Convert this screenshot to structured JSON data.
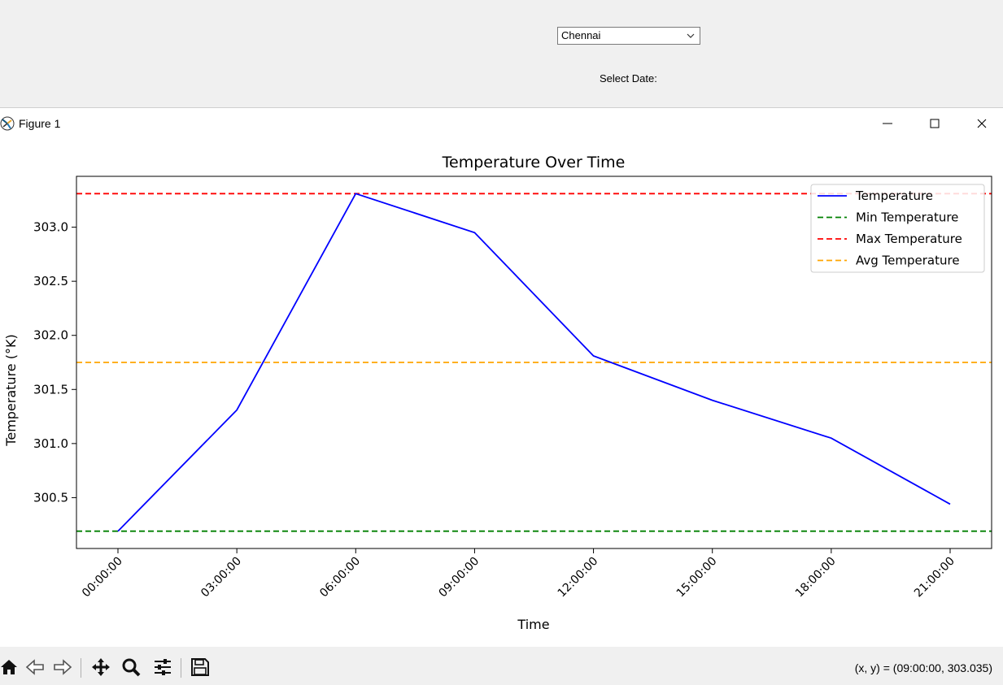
{
  "app": {
    "city_value": "Chennai",
    "date_label": "Select Date:"
  },
  "window": {
    "title": "Figure 1",
    "icons": {
      "app": "matplotlib-icon",
      "minimize": "minimize-icon",
      "maximize": "maximize-icon",
      "close": "close-icon"
    }
  },
  "chart_data": {
    "type": "line",
    "title": "Temperature Over Time",
    "xlabel": "Time",
    "ylabel": "Temperature (°K)",
    "categories": [
      "00:00:00",
      "03:00:00",
      "06:00:00",
      "09:00:00",
      "12:00:00",
      "15:00:00",
      "18:00:00",
      "21:00:00"
    ],
    "series": [
      {
        "name": "Temperature",
        "values": [
          300.19,
          301.31,
          303.31,
          302.95,
          301.81,
          301.4,
          301.05,
          300.44
        ],
        "color": "#0000ff",
        "style": "solid"
      }
    ],
    "hlines": [
      {
        "name": "Min Temperature",
        "value": 300.19,
        "color": "#008000",
        "style": "dashed"
      },
      {
        "name": "Max Temperature",
        "value": 303.31,
        "color": "#ff0000",
        "style": "dashed"
      },
      {
        "name": "Avg Temperature",
        "value": 301.75,
        "color": "#ffa500",
        "style": "dashed"
      }
    ],
    "ylim": [
      300.03,
      303.47
    ],
    "yticks": [
      "300.5",
      "301.0",
      "301.5",
      "302.0",
      "302.5",
      "303.0"
    ],
    "ytick_values": [
      300.5,
      301.0,
      301.5,
      302.0,
      302.5,
      303.0
    ],
    "legend_position": "top-right",
    "grid": false
  },
  "toolbar": {
    "tools": [
      "home-icon",
      "back-icon",
      "forward-icon",
      "pan-icon",
      "zoom-icon",
      "configure-subplots-icon",
      "save-icon"
    ],
    "coords": "(x, y) = (09:00:00, 303.035)"
  }
}
